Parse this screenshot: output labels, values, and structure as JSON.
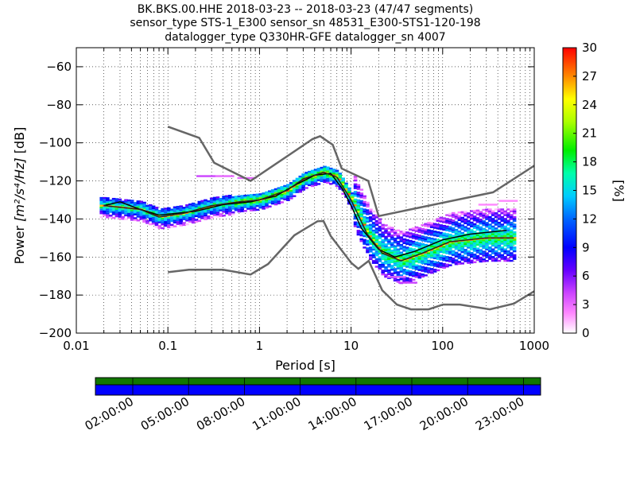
{
  "title": {
    "line1": "BK.BKS.00.HHE   2018-03-23 -- 2018-03-23  (47/47 segments)",
    "line2": "sensor_type STS-1_E300 sensor_sn 48531_E300-STS1-120-198",
    "line3": "datalogger_type Q330HR-GFE datalogger_sn 4007"
  },
  "chart_data": {
    "type": "heatmap",
    "title": "BK.BKS.00.HHE   2018-03-23 -- 2018-03-23  (47/47 segments)",
    "xlabel": "Period [s]",
    "ylabel_prefix": "Power ",
    "ylabel_unit": "[m²/s⁴/Hz]",
    "ylabel_suffix": " [dB]",
    "xscale": "log",
    "xlim": [
      0.01,
      1000
    ],
    "ylim": [
      -200,
      -50
    ],
    "xticks": [
      {
        "value": 0.01,
        "label": "0.01"
      },
      {
        "value": 0.1,
        "label": "0.1"
      },
      {
        "value": 1,
        "label": "1"
      },
      {
        "value": 10,
        "label": "10"
      },
      {
        "value": 100,
        "label": "100"
      },
      {
        "value": 1000,
        "label": "1000"
      }
    ],
    "yticks": [
      {
        "value": -60,
        "label": "−60"
      },
      {
        "value": -80,
        "label": "−80"
      },
      {
        "value": -100,
        "label": "−100"
      },
      {
        "value": -120,
        "label": "−120"
      },
      {
        "value": -140,
        "label": "−140"
      },
      {
        "value": -160,
        "label": "−160"
      },
      {
        "value": -180,
        "label": "−180"
      },
      {
        "value": -200,
        "label": "−200"
      }
    ],
    "colorbar": {
      "label": "[%]",
      "min": 0,
      "max": 30,
      "ticks": [
        {
          "value": 0,
          "label": "0"
        },
        {
          "value": 3,
          "label": "3"
        },
        {
          "value": 6,
          "label": "6"
        },
        {
          "value": 9,
          "label": "9"
        },
        {
          "value": 12,
          "label": "12"
        },
        {
          "value": 15,
          "label": "15"
        },
        {
          "value": 18,
          "label": "18"
        },
        {
          "value": 21,
          "label": "21"
        },
        {
          "value": 24,
          "label": "24"
        },
        {
          "value": 27,
          "label": "27"
        },
        {
          "value": 30,
          "label": "30"
        }
      ]
    },
    "series": [
      {
        "role": "high-noise-model",
        "color": "#666666",
        "points": [
          [
            0.1,
            -91.5
          ],
          [
            0.22,
            -97.4
          ],
          [
            0.32,
            -110.5
          ],
          [
            0.8,
            -120
          ],
          [
            3.8,
            -98
          ],
          [
            4.6,
            -96.5
          ],
          [
            6.3,
            -101
          ],
          [
            7.9,
            -113.5
          ],
          [
            15.4,
            -120
          ],
          [
            20,
            -138.5
          ],
          [
            354.8,
            -126
          ],
          [
            1000,
            -112
          ]
        ]
      },
      {
        "role": "low-noise-model",
        "color": "#666666",
        "points": [
          [
            0.1,
            -168
          ],
          [
            0.17,
            -166.7
          ],
          [
            0.4,
            -166.7
          ],
          [
            0.8,
            -169.2
          ],
          [
            1.24,
            -163.7
          ],
          [
            2.4,
            -148.6
          ],
          [
            4.3,
            -141.2
          ],
          [
            5,
            -141.1
          ],
          [
            6,
            -149
          ],
          [
            10,
            -163
          ],
          [
            12,
            -166.2
          ],
          [
            15.6,
            -162
          ],
          [
            21.9,
            -177.5
          ],
          [
            31.6,
            -185
          ],
          [
            45,
            -187.5
          ],
          [
            70,
            -187.5
          ],
          [
            101,
            -185
          ],
          [
            154,
            -185
          ],
          [
            328,
            -187.5
          ],
          [
            600,
            -184.5
          ],
          [
            1000,
            -178
          ]
        ]
      },
      {
        "role": "mean",
        "color": "#000000",
        "points": [
          [
            0.02,
            -133
          ],
          [
            0.03,
            -131
          ],
          [
            0.05,
            -135
          ],
          [
            0.08,
            -138
          ],
          [
            0.2,
            -136
          ],
          [
            0.4,
            -132.5
          ],
          [
            0.8,
            -131
          ],
          [
            1.5,
            -128
          ],
          [
            2.5,
            -122
          ],
          [
            4,
            -117
          ],
          [
            6,
            -116
          ],
          [
            8,
            -124
          ],
          [
            10,
            -133
          ],
          [
            13,
            -145
          ],
          [
            20,
            -156
          ],
          [
            30,
            -160
          ],
          [
            50,
            -157
          ],
          [
            100,
            -151
          ],
          [
            200,
            -148
          ],
          [
            500,
            -146
          ]
        ]
      },
      {
        "role": "mode",
        "color": "#222222",
        "points": [
          [
            0.02,
            -133
          ],
          [
            0.05,
            -135
          ],
          [
            0.08,
            -139
          ],
          [
            0.15,
            -137
          ],
          [
            0.3,
            -133
          ],
          [
            0.6,
            -131
          ],
          [
            1,
            -130
          ],
          [
            2,
            -125
          ],
          [
            3,
            -119
          ],
          [
            5,
            -115.5
          ],
          [
            7,
            -118
          ],
          [
            10,
            -130
          ],
          [
            15,
            -148
          ],
          [
            22,
            -158
          ],
          [
            35,
            -162
          ],
          [
            60,
            -158
          ],
          [
            120,
            -152
          ],
          [
            300,
            -150
          ],
          [
            600,
            -150
          ]
        ]
      }
    ],
    "density_bands": [
      {
        "start": 0.018,
        "end": 0.5,
        "percent": 3,
        "offset_lo": -6,
        "offset_hi": 4
      },
      {
        "start": 0.5,
        "end": 10,
        "percent": 6,
        "offset_lo": -5,
        "offset_hi": 3
      },
      {
        "start": 10,
        "end": 600,
        "percent": 3,
        "offset_lo": -12,
        "offset_hi": 15
      }
    ],
    "stray_bins": [
      {
        "x": 0.25,
        "y": -117,
        "percent": 4
      },
      {
        "x": 0.4,
        "y": -117,
        "percent": 3
      },
      {
        "x": 0.7,
        "y": -118,
        "percent": 3
      },
      {
        "x": 30,
        "y": -170,
        "percent": 3
      },
      {
        "x": 40,
        "y": -173,
        "percent": 4
      },
      {
        "x": 300,
        "y": -132,
        "percent": 2
      },
      {
        "x": 500,
        "y": -130,
        "percent": 2
      }
    ]
  },
  "time_axis": {
    "labels": [
      "02:00:00",
      "05:00:00",
      "08:00:00",
      "11:00:00",
      "14:00:00",
      "17:00:00",
      "20:00:00",
      "23:00:00"
    ],
    "coverage_color": "#0000ff",
    "data_color": "#117700",
    "segments": 47
  }
}
